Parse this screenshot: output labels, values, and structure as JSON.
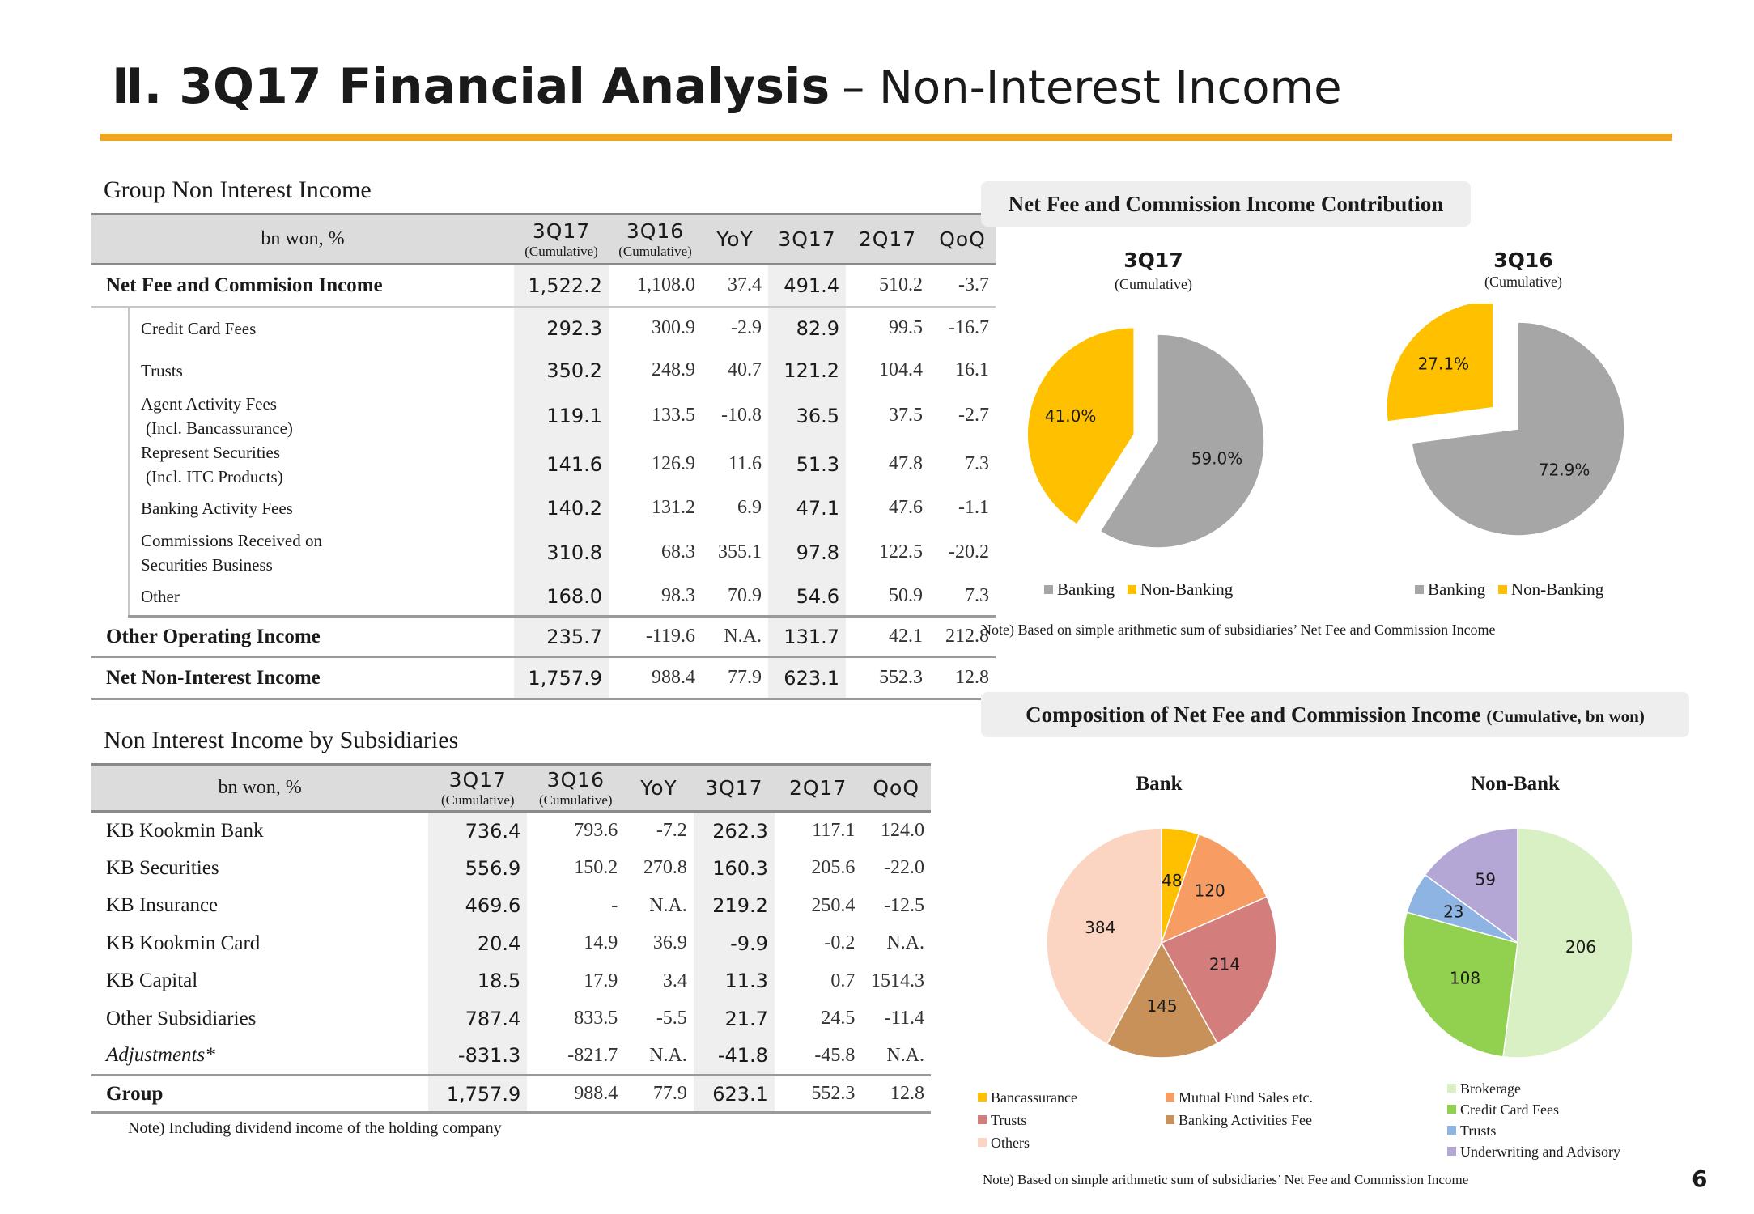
{
  "header": {
    "title_bold": "Ⅱ. 3Q17 Financial Analysis",
    "title_rest": "– Non-Interest Income",
    "accent_color": "#f2a41e"
  },
  "group_table": {
    "title": "Group Non Interest Income",
    "corner_label": "bn won, %",
    "columns": [
      {
        "main": "3Q17",
        "sub": "(Cumulative)"
      },
      {
        "main": "3Q16",
        "sub": "(Cumulative)"
      },
      {
        "main": "YoY",
        "sub": ""
      },
      {
        "main": "3Q17",
        "sub": ""
      },
      {
        "main": "2Q17",
        "sub": ""
      },
      {
        "main": "QoQ",
        "sub": ""
      }
    ],
    "rows": [
      {
        "label": "Net Fee and Commision Income",
        "values": [
          "1,522.2",
          "1,108.0",
          "37.4",
          "491.4",
          "510.2",
          "-3.7"
        ]
      },
      {
        "label": "Credit Card Fees",
        "values": [
          "292.3",
          "300.9",
          "-2.9",
          "82.9",
          "99.5",
          "-16.7"
        ]
      },
      {
        "label": "Trusts",
        "values": [
          "350.2",
          "248.9",
          "40.7",
          "121.2",
          "104.4",
          "16.1"
        ]
      },
      {
        "label": "Agent Activity Fees",
        "label2": "(Incl. Bancassurance)",
        "values": [
          "119.1",
          "133.5",
          "-10.8",
          "36.5",
          "37.5",
          "-2.7"
        ]
      },
      {
        "label": "Represent Securities",
        "label2": "(Incl. ITC Products)",
        "values": [
          "141.6",
          "126.9",
          "11.6",
          "51.3",
          "47.8",
          "7.3"
        ]
      },
      {
        "label": "Banking Activity Fees",
        "values": [
          "140.2",
          "131.2",
          "6.9",
          "47.1",
          "47.6",
          "-1.1"
        ]
      },
      {
        "label": "Commissions Received on",
        "label2": "Securities Business",
        "values": [
          "310.8",
          "68.3",
          "355.1",
          "97.8",
          "122.5",
          "-20.2"
        ]
      },
      {
        "label": "Other",
        "values": [
          "168.0",
          "98.3",
          "70.9",
          "54.6",
          "50.9",
          "7.3"
        ]
      },
      {
        "label": "Other Operating Income",
        "values": [
          "235.7",
          "-119.6",
          "N.A.",
          "131.7",
          "42.1",
          "212.8"
        ]
      },
      {
        "label": "Net Non-Interest Income",
        "values": [
          "1,757.9",
          "988.4",
          "77.9",
          "623.1",
          "552.3",
          "12.8"
        ]
      }
    ]
  },
  "subs_table": {
    "title": "Non Interest Income by Subsidiaries",
    "corner_label": "bn won, %",
    "columns": [
      {
        "main": "3Q17",
        "sub": "(Cumulative)"
      },
      {
        "main": "3Q16",
        "sub": "(Cumulative)"
      },
      {
        "main": "YoY",
        "sub": ""
      },
      {
        "main": "3Q17",
        "sub": ""
      },
      {
        "main": "2Q17",
        "sub": ""
      },
      {
        "main": "QoQ",
        "sub": ""
      }
    ],
    "rows": [
      {
        "label": "KB Kookmin Bank",
        "values": [
          "736.4",
          "793.6",
          "-7.2",
          "262.3",
          "117.1",
          "124.0"
        ]
      },
      {
        "label": "KB Securities",
        "values": [
          "556.9",
          "150.2",
          "270.8",
          "160.3",
          "205.6",
          "-22.0"
        ]
      },
      {
        "label": "KB Insurance",
        "values": [
          "469.6",
          "-",
          "N.A.",
          "219.2",
          "250.4",
          "-12.5"
        ]
      },
      {
        "label": "KB Kookmin Card",
        "values": [
          "20.4",
          "14.9",
          "36.9",
          "-9.9",
          "-0.2",
          "N.A."
        ]
      },
      {
        "label": "KB Capital",
        "values": [
          "18.5",
          "17.9",
          "3.4",
          "11.3",
          "0.7",
          "1514.3"
        ]
      },
      {
        "label": "Other Subsidiaries",
        "values": [
          "787.4",
          "833.5",
          "-5.5",
          "21.7",
          "24.5",
          "-11.4"
        ]
      },
      {
        "label": "Adjustments*",
        "values": [
          "-831.3",
          "-821.7",
          "N.A.",
          "-41.8",
          "-45.8",
          "N.A."
        ]
      },
      {
        "label": "Group",
        "values": [
          "1,757.9",
          "988.4",
          "77.9",
          "623.1",
          "552.3",
          "12.8"
        ]
      }
    ],
    "note": "Note) Including dividend income of the holding company"
  },
  "contribution": {
    "title": "Net Fee and Commission Income Contribution",
    "note": "Note) Based on simple arithmetic sum of subsidiaries’ Net Fee and Commission Income"
  },
  "composition": {
    "title": "Composition of Net Fee and Commission Income",
    "title_unit": "(Cumulative, bn won)",
    "note": "Note) Based on simple arithmetic sum of subsidiaries’ Net Fee and Commission Income"
  },
  "chart_data": [
    {
      "type": "pie",
      "title": "3Q17",
      "subtitle": "(Cumulative)",
      "categories": [
        "Banking",
        "Non-Banking"
      ],
      "values": [
        59.0,
        41.0
      ],
      "labels": [
        "59.0%",
        "41.0%"
      ],
      "colors": [
        "#a6a6a6",
        "#ffc000"
      ],
      "exploded": "Non-Banking",
      "legend_position": "bottom"
    },
    {
      "type": "pie",
      "title": "3Q16",
      "subtitle": "(Cumulative)",
      "categories": [
        "Banking",
        "Non-Banking"
      ],
      "values": [
        72.9,
        27.1
      ],
      "labels": [
        "72.9%",
        "27.1%"
      ],
      "colors": [
        "#a6a6a6",
        "#ffc000"
      ],
      "exploded": "Non-Banking",
      "legend_position": "bottom"
    },
    {
      "type": "pie",
      "title": "Bank",
      "categories": [
        "Bancassurance",
        "Mutual Fund Sales etc.",
        "Trusts",
        "Banking Activities Fee",
        "Others"
      ],
      "values": [
        48,
        120,
        214,
        145,
        384
      ],
      "labels": [
        "48",
        "120",
        "214",
        "145",
        "384"
      ],
      "colors": [
        "#ffc000",
        "#f79c63",
        "#d47d7d",
        "#c8915a",
        "#fcd5c2"
      ],
      "legend_position": "bottom"
    },
    {
      "type": "pie",
      "title": "Non-Bank",
      "categories": [
        "Brokerage",
        "Credit Card Fees",
        "Trusts",
        "Underwriting and Advisory"
      ],
      "values": [
        206,
        108,
        23,
        59
      ],
      "labels": [
        "206",
        "108",
        "23",
        "59"
      ],
      "colors": [
        "#d9efc4",
        "#92d050",
        "#8db4e2",
        "#b4a7d6"
      ],
      "legend_position": "bottom"
    }
  ],
  "page_number": "6"
}
